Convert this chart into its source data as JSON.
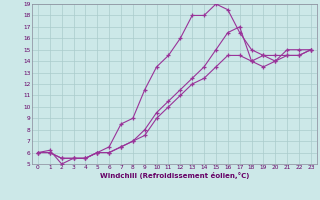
{
  "xlabel": "Windchill (Refroidissement éolien,°C)",
  "xlim": [
    -0.5,
    23.5
  ],
  "ylim": [
    5,
    19
  ],
  "xticks": [
    0,
    1,
    2,
    3,
    4,
    5,
    6,
    7,
    8,
    9,
    10,
    11,
    12,
    13,
    14,
    15,
    16,
    17,
    18,
    19,
    20,
    21,
    22,
    23
  ],
  "yticks": [
    5,
    6,
    7,
    8,
    9,
    10,
    11,
    12,
    13,
    14,
    15,
    16,
    17,
    18,
    19
  ],
  "bg_color": "#cce8e8",
  "grid_color": "#aacccc",
  "line_color": "#993399",
  "line1_x": [
    0,
    1,
    2,
    3,
    4,
    5,
    6,
    7,
    8,
    9,
    10,
    11,
    12,
    13,
    14,
    15,
    16,
    17,
    18,
    19,
    20,
    21,
    22,
    23
  ],
  "line1_y": [
    6.0,
    6.2,
    5.0,
    5.5,
    5.5,
    6.0,
    6.5,
    8.5,
    9.0,
    11.5,
    13.5,
    14.5,
    16.0,
    18.0,
    18.0,
    19.0,
    18.5,
    16.5,
    15.0,
    14.5,
    14.0,
    15.0,
    15.0,
    15.0
  ],
  "line2_x": [
    0,
    1,
    2,
    3,
    4,
    5,
    6,
    7,
    8,
    9,
    10,
    11,
    12,
    13,
    14,
    15,
    16,
    17,
    18,
    19,
    20,
    21,
    22,
    23
  ],
  "line2_y": [
    6.0,
    6.0,
    5.5,
    5.5,
    5.5,
    6.0,
    6.0,
    6.5,
    7.0,
    8.0,
    9.5,
    10.5,
    11.5,
    12.5,
    13.5,
    15.0,
    16.5,
    17.0,
    14.0,
    14.5,
    14.5,
    14.5,
    14.5,
    15.0
  ],
  "line3_x": [
    0,
    1,
    2,
    3,
    4,
    5,
    6,
    7,
    8,
    9,
    10,
    11,
    12,
    13,
    14,
    15,
    16,
    17,
    18,
    19,
    20,
    21,
    22,
    23
  ],
  "line3_y": [
    6.0,
    6.0,
    5.5,
    5.5,
    5.5,
    6.0,
    6.0,
    6.5,
    7.0,
    7.5,
    9.0,
    10.0,
    11.0,
    12.0,
    12.5,
    13.5,
    14.5,
    14.5,
    14.0,
    13.5,
    14.0,
    14.5,
    14.5,
    15.0
  ]
}
